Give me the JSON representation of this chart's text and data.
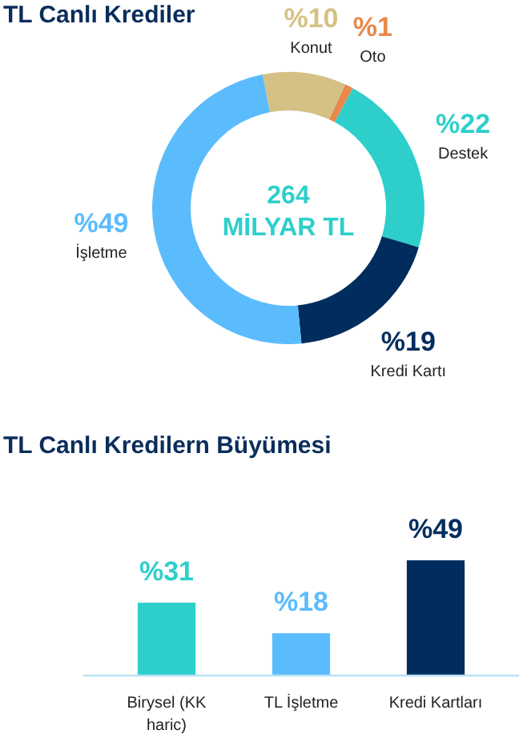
{
  "chart_data": [
    {
      "type": "donut",
      "title": "TL Canlı Krediler",
      "categories": [
        "Konut",
        "Oto",
        "Destek",
        "Kredi Kartı",
        "İşletme"
      ],
      "values": [
        10,
        1,
        22,
        19,
        49
      ],
      "colors": [
        "#d5c185",
        "#e8884a",
        "#2ecfcb",
        "#002d5e",
        "#5bbcfd"
      ],
      "value_labels": [
        "%10",
        "%1",
        "%22",
        "%19",
        "%49"
      ],
      "annotations": [
        "264",
        "MİLYAR TL"
      ]
    },
    {
      "type": "bar",
      "title": "TL Canlı Kredilern Büyümesi",
      "categories": [
        "Birysel (KK haric)",
        "TL İşletme",
        "Kredi Kartları"
      ],
      "values": [
        31,
        18,
        49
      ],
      "colors": [
        "#2ecfcb",
        "#5bbcfd",
        "#002d5e"
      ],
      "value_labels": [
        "%31",
        "%18",
        "%49"
      ]
    }
  ]
}
